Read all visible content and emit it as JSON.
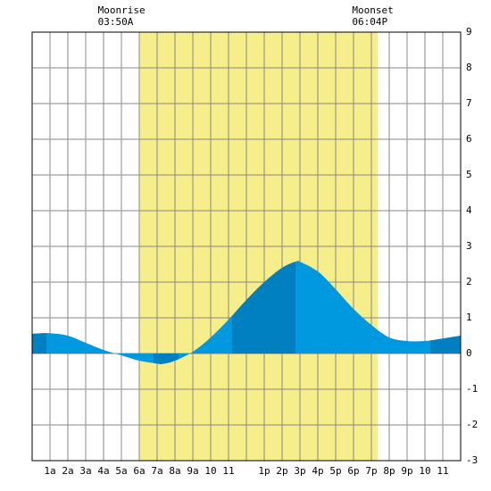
{
  "chart_data": {
    "type": "area",
    "annotations": [
      {
        "label": "Moonrise",
        "time": "03:50A",
        "x": 3.83
      },
      {
        "label": "Moonset",
        "time": "06:04P",
        "x": 18.07
      }
    ],
    "daylight": [
      6.0,
      19.35
    ],
    "daylight_color": "#f5ee8a",
    "x": [
      0,
      1,
      2,
      3,
      4,
      5,
      6,
      7,
      7.3,
      8,
      9,
      10,
      11,
      12,
      13,
      14,
      14.8,
      15,
      16,
      17,
      18,
      19,
      20,
      21,
      22,
      23,
      24
    ],
    "series": [
      {
        "color": "#0099e0",
        "dark_color": "#0080c0",
        "values": [
          0.55,
          0.57,
          0.5,
          0.3,
          0.1,
          -0.05,
          -0.2,
          -0.28,
          -0.29,
          -0.2,
          0.05,
          0.45,
          0.95,
          1.5,
          2.0,
          2.4,
          2.58,
          2.57,
          2.3,
          1.8,
          1.25,
          0.8,
          0.45,
          0.35,
          0.35,
          0.42,
          0.5
        ]
      }
    ],
    "shade_ranges": [
      [
        0,
        0.8
      ],
      [
        6.8,
        8.2
      ],
      [
        11.2,
        14.75
      ],
      [
        22.3,
        24
      ]
    ],
    "categories": [
      "1a",
      "2a",
      "3a",
      "4a",
      "5a",
      "6a",
      "7a",
      "8a",
      "9a",
      "10",
      "11",
      null,
      "1p",
      "2p",
      "3p",
      "4p",
      "5p",
      "6p",
      "7p",
      "8p",
      "9p",
      "10",
      "11"
    ],
    "category_x": [
      1,
      2,
      3,
      4,
      5,
      6,
      7,
      8,
      9,
      10,
      11,
      12,
      13,
      14,
      15,
      16,
      17,
      18,
      19,
      20,
      21,
      22,
      23
    ],
    "xlim": [
      0,
      24
    ],
    "xticks": [
      0,
      1,
      2,
      3,
      4,
      5,
      6,
      7,
      8,
      9,
      10,
      11,
      12,
      13,
      14,
      15,
      16,
      17,
      18,
      19,
      20,
      21,
      22,
      23,
      24
    ],
    "ylim": [
      -3,
      9
    ],
    "yticks": [
      -3,
      -2,
      -1,
      0,
      1,
      2,
      3,
      4,
      5,
      6,
      7,
      8,
      9
    ],
    "grid": true
  }
}
